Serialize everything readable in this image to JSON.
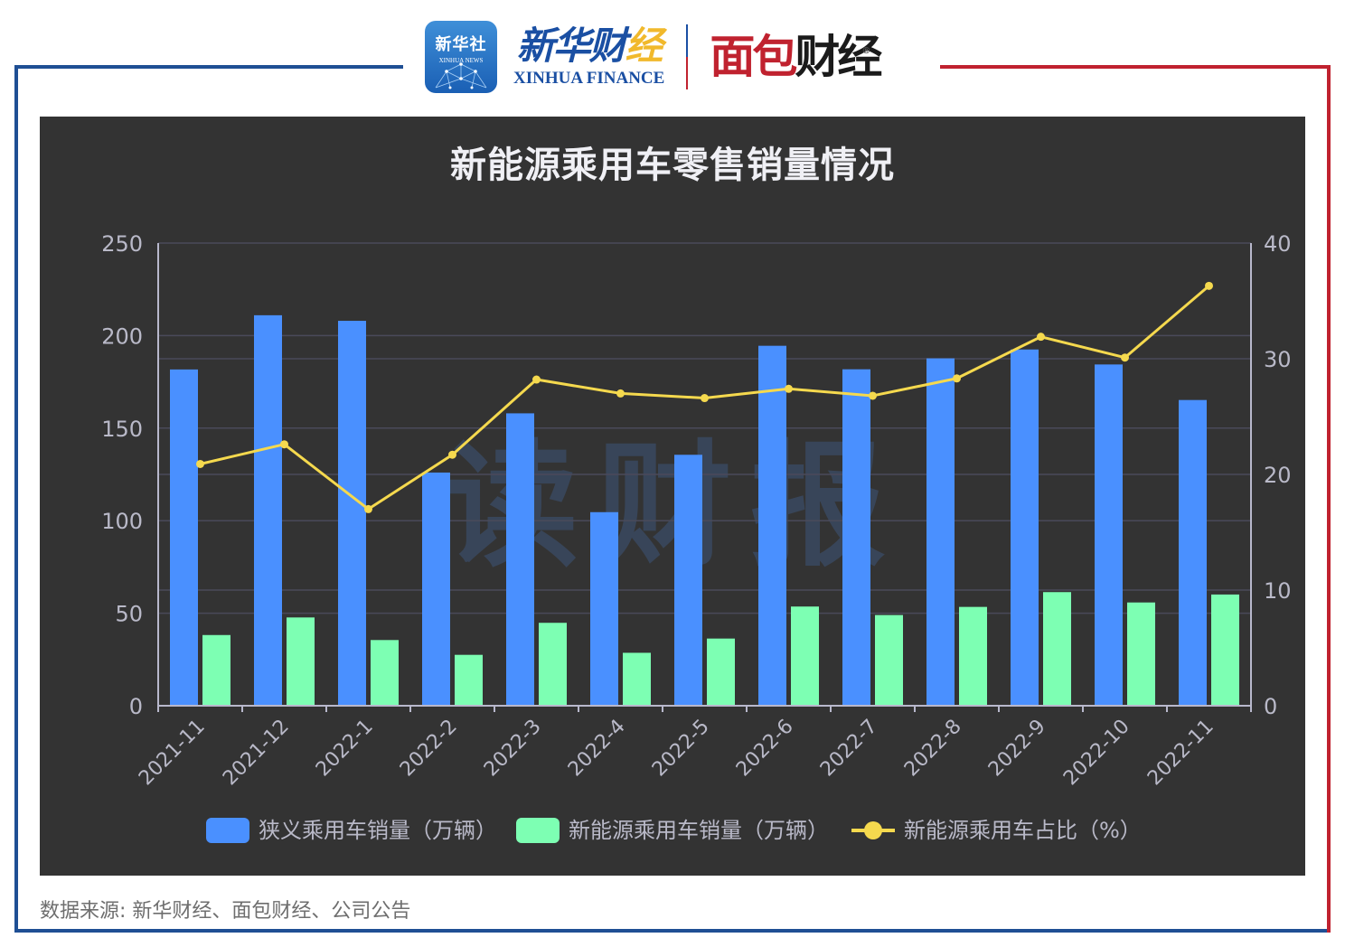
{
  "header": {
    "xinhua_app": {
      "cn": "新华社",
      "en": "XINHUA NEWS"
    },
    "xinhua_finance": {
      "cn_main": "新华财",
      "cn_accent": "经",
      "en": "XINHUA FINANCE"
    },
    "mianbao": {
      "part1": "面包",
      "part2": "财经",
      "registered": "®"
    },
    "colors": {
      "blue": "#1f4f94",
      "red": "#c0222f"
    }
  },
  "watermark": "读财报",
  "footer": {
    "source": "数据来源: 新华财经、面包财经、公司公告"
  },
  "chart_data": {
    "type": "bar",
    "title": "新能源乘用车零售销量情况",
    "categories": [
      "2021-11",
      "2021-12",
      "2022-1",
      "2022-2",
      "2022-3",
      "2022-4",
      "2022-5",
      "2022-6",
      "2022-7",
      "2022-8",
      "2022-9",
      "2022-10",
      "2022-11"
    ],
    "series": [
      {
        "name": "狭义乘用车销量（万辆）",
        "type": "bar",
        "axis": "left",
        "color": "#4a90ff",
        "values": [
          181.7,
          211.0,
          208.0,
          126.0,
          158.0,
          104.6,
          135.6,
          194.5,
          181.8,
          187.7,
          192.5,
          184.4,
          165.2
        ]
      },
      {
        "name": "新能源乘用车销量（万辆）",
        "type": "bar",
        "axis": "left",
        "color": "#7dffb3",
        "values": [
          38.2,
          47.7,
          35.5,
          27.5,
          44.8,
          28.6,
          36.3,
          53.6,
          49.0,
          53.4,
          61.4,
          55.8,
          60.1
        ]
      },
      {
        "name": "新能源乘用车占比（%）",
        "type": "line",
        "axis": "right",
        "color": "#f5d94e",
        "values": [
          20.9,
          22.6,
          17.0,
          21.7,
          28.2,
          27.0,
          26.6,
          27.4,
          26.8,
          28.3,
          31.9,
          30.1,
          36.3
        ]
      }
    ],
    "left_axis": {
      "ticks": [
        0,
        50,
        100,
        150,
        200,
        250
      ],
      "ylim": [
        0,
        250
      ]
    },
    "right_axis": {
      "ticks": [
        0,
        10,
        20,
        30,
        40
      ],
      "ylim": [
        0,
        40
      ]
    },
    "xlabel": "",
    "ylabel": "",
    "grid": true,
    "legend_position": "bottom"
  }
}
